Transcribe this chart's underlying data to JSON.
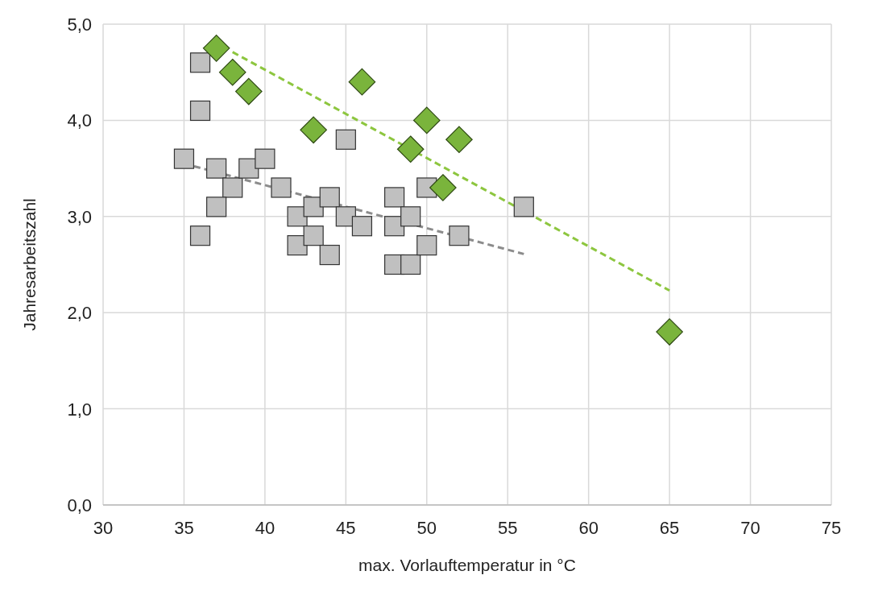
{
  "chart_data": {
    "type": "scatter",
    "xlabel": "max. Vorlauftemperatur in °C",
    "ylabel": "Jahresarbeitszahl",
    "xlim": [
      30,
      75
    ],
    "xticks": [
      30,
      35,
      40,
      45,
      50,
      55,
      60,
      65,
      70,
      75
    ],
    "ylim": [
      0,
      5
    ],
    "yticks": [
      {
        "value": 0,
        "label": "0,0"
      },
      {
        "value": 1,
        "label": "1,0"
      },
      {
        "value": 2,
        "label": "2,0"
      },
      {
        "value": 3,
        "label": "3,0"
      },
      {
        "value": 4,
        "label": "4,0"
      },
      {
        "value": 5,
        "label": "5,0"
      }
    ],
    "grid": true,
    "series": [
      {
        "type": "line",
        "color": "#8c8c8c",
        "marker": "none",
        "line_style": "dashed",
        "x": [
          35,
          56
        ],
        "values": [
          3.55,
          2.61
        ]
      },
      {
        "type": "line",
        "color": "#8dc63f",
        "marker": "none",
        "line_style": "dashed",
        "x": [
          38,
          65
        ],
        "values": [
          4.71,
          2.23
        ]
      },
      {
        "color": "#c0c0c0",
        "marker": "square",
        "x": [
          36,
          36,
          35,
          37,
          38,
          37,
          36,
          39,
          40,
          41,
          42,
          42,
          43,
          43,
          44,
          44,
          45,
          45,
          46,
          48,
          48,
          48,
          49,
          49,
          50,
          50,
          52,
          56
        ],
        "values": [
          4.6,
          4.1,
          3.6,
          3.5,
          3.3,
          3.1,
          2.8,
          3.5,
          3.6,
          3.3,
          3.0,
          2.7,
          3.1,
          2.8,
          3.2,
          2.6,
          3.8,
          3.0,
          2.9,
          3.2,
          2.9,
          2.5,
          3.0,
          2.5,
          3.3,
          2.7,
          2.8,
          3.1
        ]
      },
      {
        "color": "#7ab43c",
        "marker": "diamond",
        "x": [
          37,
          38,
          39,
          43,
          46,
          49,
          50,
          51,
          52,
          65
        ],
        "values": [
          4.75,
          4.5,
          4.3,
          3.9,
          4.4,
          3.7,
          4.0,
          3.3,
          3.8,
          1.8
        ]
      }
    ]
  }
}
